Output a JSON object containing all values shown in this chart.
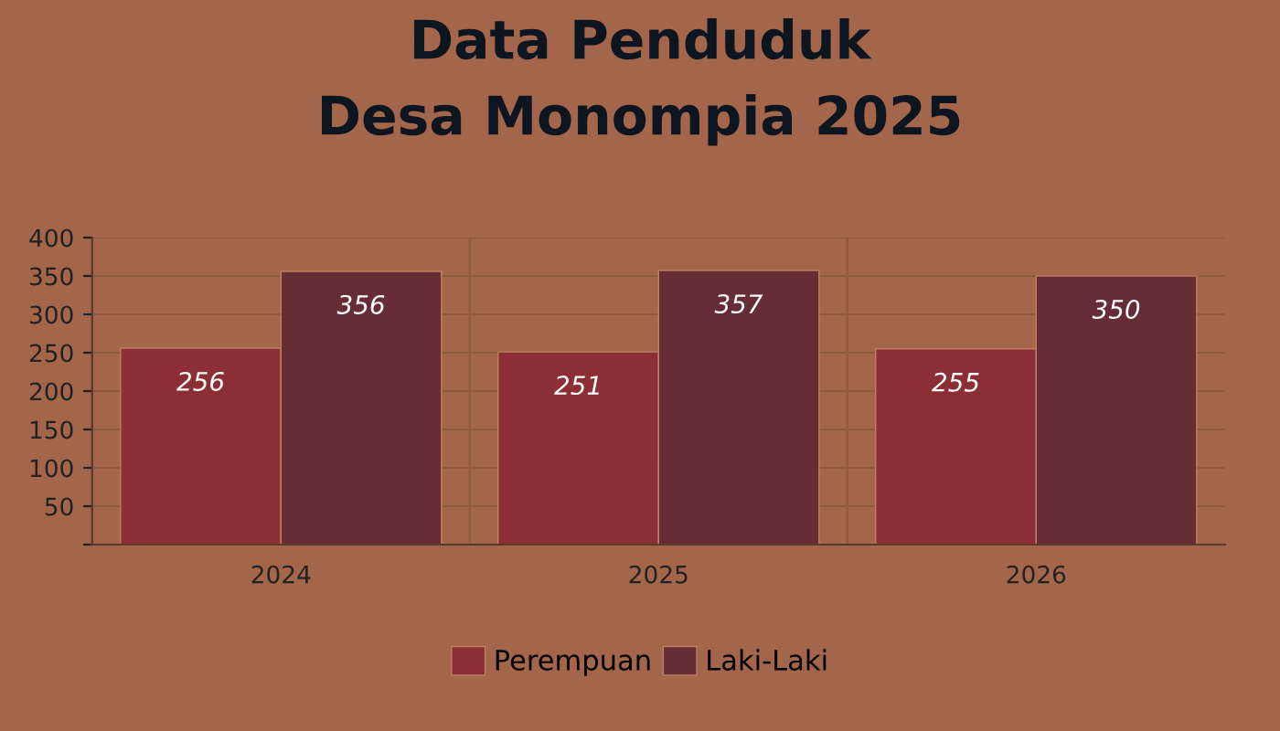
{
  "chart_data": {
    "type": "bar",
    "title": "Data Penduduk\nDesa Monompia 2025",
    "categories": [
      "2024",
      "2025",
      "2026"
    ],
    "series": [
      {
        "name": "Perempuan",
        "color": "#8b2e35",
        "values": [
          256,
          251,
          255
        ]
      },
      {
        "name": "Laki-Laki",
        "color": "#662d35",
        "values": [
          356,
          357,
          350
        ]
      }
    ],
    "ylim": [
      0,
      400
    ],
    "yticks": [
      {
        "value": 0,
        "label": null
      },
      50,
      100,
      150,
      200,
      250,
      300,
      350,
      400
    ],
    "grid": true,
    "legend": "bottom",
    "data_labels": true
  }
}
